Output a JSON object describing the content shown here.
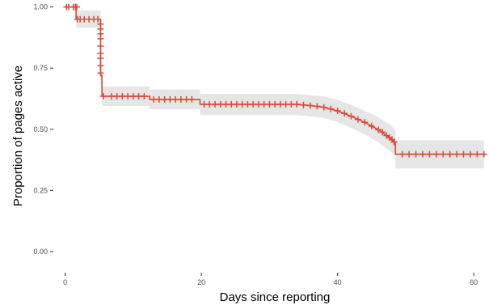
{
  "chart_data": {
    "type": "line",
    "title": "",
    "xlabel": "Days since reporting",
    "ylabel": "Proportion of pages active",
    "xlim": [
      -1.5,
      62
    ],
    "ylim": [
      0,
      1.0
    ],
    "x_ticks": [
      0,
      20,
      40,
      60
    ],
    "x_tick_labels": [
      "0",
      "20",
      "40",
      "60"
    ],
    "y_ticks": [
      0,
      0.25,
      0.5,
      0.75,
      1.0
    ],
    "y_tick_labels": [
      "0.00",
      "0.25",
      "0.50",
      "0.75",
      "1.00"
    ],
    "grid": false,
    "legend": "none",
    "series": [
      {
        "x": [
          0,
          1.6,
          1.6,
          5.2,
          5.2,
          5.4,
          5.4,
          12.4,
          12.4,
          19.8,
          19.8,
          34,
          36,
          38,
          40,
          42,
          44,
          46,
          47,
          48,
          48.5,
          48.5,
          61.5
        ],
        "y": [
          1.0,
          1.0,
          0.95,
          0.95,
          0.72,
          0.72,
          0.635,
          0.635,
          0.622,
          0.622,
          0.602,
          0.602,
          0.597,
          0.59,
          0.575,
          0.553,
          0.528,
          0.498,
          0.478,
          0.458,
          0.44,
          0.398,
          0.398
        ],
        "upper": [
          1.0,
          1.0,
          0.985,
          0.985,
          0.76,
          0.76,
          0.675,
          0.675,
          0.662,
          0.662,
          0.645,
          0.645,
          0.64,
          0.634,
          0.62,
          0.6,
          0.575,
          0.55,
          0.53,
          0.512,
          0.494,
          0.455,
          0.455
        ],
        "lower": [
          1.0,
          1.0,
          0.915,
          0.915,
          0.68,
          0.68,
          0.595,
          0.595,
          0.582,
          0.582,
          0.558,
          0.558,
          0.553,
          0.546,
          0.53,
          0.505,
          0.48,
          0.446,
          0.424,
          0.404,
          0.386,
          0.34,
          0.34
        ],
        "censored": [
          [
            0.2,
            1.0
          ],
          [
            0.5,
            1.0
          ],
          [
            1.2,
            1.0
          ],
          [
            1.5,
            1.0
          ],
          [
            1.7,
            1.0
          ],
          [
            1.8,
            0.95
          ],
          [
            2.2,
            0.95
          ],
          [
            2.8,
            0.95
          ],
          [
            3.5,
            0.95
          ],
          [
            4.2,
            0.95
          ],
          [
            4.8,
            0.95
          ],
          [
            5.2,
            0.93
          ],
          [
            5.2,
            0.91
          ],
          [
            5.2,
            0.89
          ],
          [
            5.2,
            0.87
          ],
          [
            5.2,
            0.84
          ],
          [
            5.2,
            0.81
          ],
          [
            5.2,
            0.79
          ],
          [
            5.2,
            0.76
          ],
          [
            5.2,
            0.73
          ],
          [
            5.6,
            0.635
          ],
          [
            6.8,
            0.635
          ],
          [
            7.6,
            0.635
          ],
          [
            8.4,
            0.635
          ],
          [
            9.2,
            0.635
          ],
          [
            10,
            0.635
          ],
          [
            10.8,
            0.635
          ],
          [
            11.6,
            0.635
          ],
          [
            13,
            0.622
          ],
          [
            13.8,
            0.622
          ],
          [
            14.6,
            0.622
          ],
          [
            15.4,
            0.622
          ],
          [
            16.2,
            0.622
          ],
          [
            17,
            0.622
          ],
          [
            17.8,
            0.622
          ],
          [
            18.6,
            0.622
          ],
          [
            20.4,
            0.602
          ],
          [
            21.2,
            0.602
          ],
          [
            22,
            0.602
          ],
          [
            22.8,
            0.602
          ],
          [
            23.6,
            0.602
          ],
          [
            24.4,
            0.602
          ],
          [
            25.2,
            0.602
          ],
          [
            26,
            0.602
          ],
          [
            26.8,
            0.602
          ],
          [
            27.6,
            0.602
          ],
          [
            28.4,
            0.602
          ],
          [
            29.2,
            0.602
          ],
          [
            30,
            0.602
          ],
          [
            30.8,
            0.602
          ],
          [
            31.6,
            0.602
          ],
          [
            32.4,
            0.602
          ],
          [
            33.2,
            0.602
          ],
          [
            34,
            0.602
          ],
          [
            35,
            0.599
          ],
          [
            36,
            0.597
          ],
          [
            37,
            0.594
          ],
          [
            38,
            0.59
          ],
          [
            39,
            0.583
          ],
          [
            40,
            0.575
          ],
          [
            41,
            0.565
          ],
          [
            42,
            0.553
          ],
          [
            43,
            0.54
          ],
          [
            44,
            0.528
          ],
          [
            45,
            0.513
          ],
          [
            46,
            0.498
          ],
          [
            46.6,
            0.488
          ],
          [
            47.2,
            0.474
          ],
          [
            47.6,
            0.466
          ],
          [
            48,
            0.458
          ],
          [
            48.3,
            0.448
          ],
          [
            49.5,
            0.398
          ],
          [
            50.5,
            0.398
          ],
          [
            51.5,
            0.398
          ],
          [
            52.5,
            0.398
          ],
          [
            53.5,
            0.398
          ],
          [
            54.5,
            0.398
          ],
          [
            55.5,
            0.398
          ],
          [
            56.5,
            0.398
          ],
          [
            57.5,
            0.398
          ],
          [
            58.5,
            0.398
          ],
          [
            59.5,
            0.398
          ],
          [
            60.5,
            0.398
          ],
          [
            61.5,
            0.398
          ]
        ]
      }
    ]
  },
  "colors": {
    "line": "#d94a36",
    "ci_band": "#e6e6e6",
    "axis_text": "#4d4d4d",
    "axis_title": "#000000",
    "tick": "#333333"
  }
}
